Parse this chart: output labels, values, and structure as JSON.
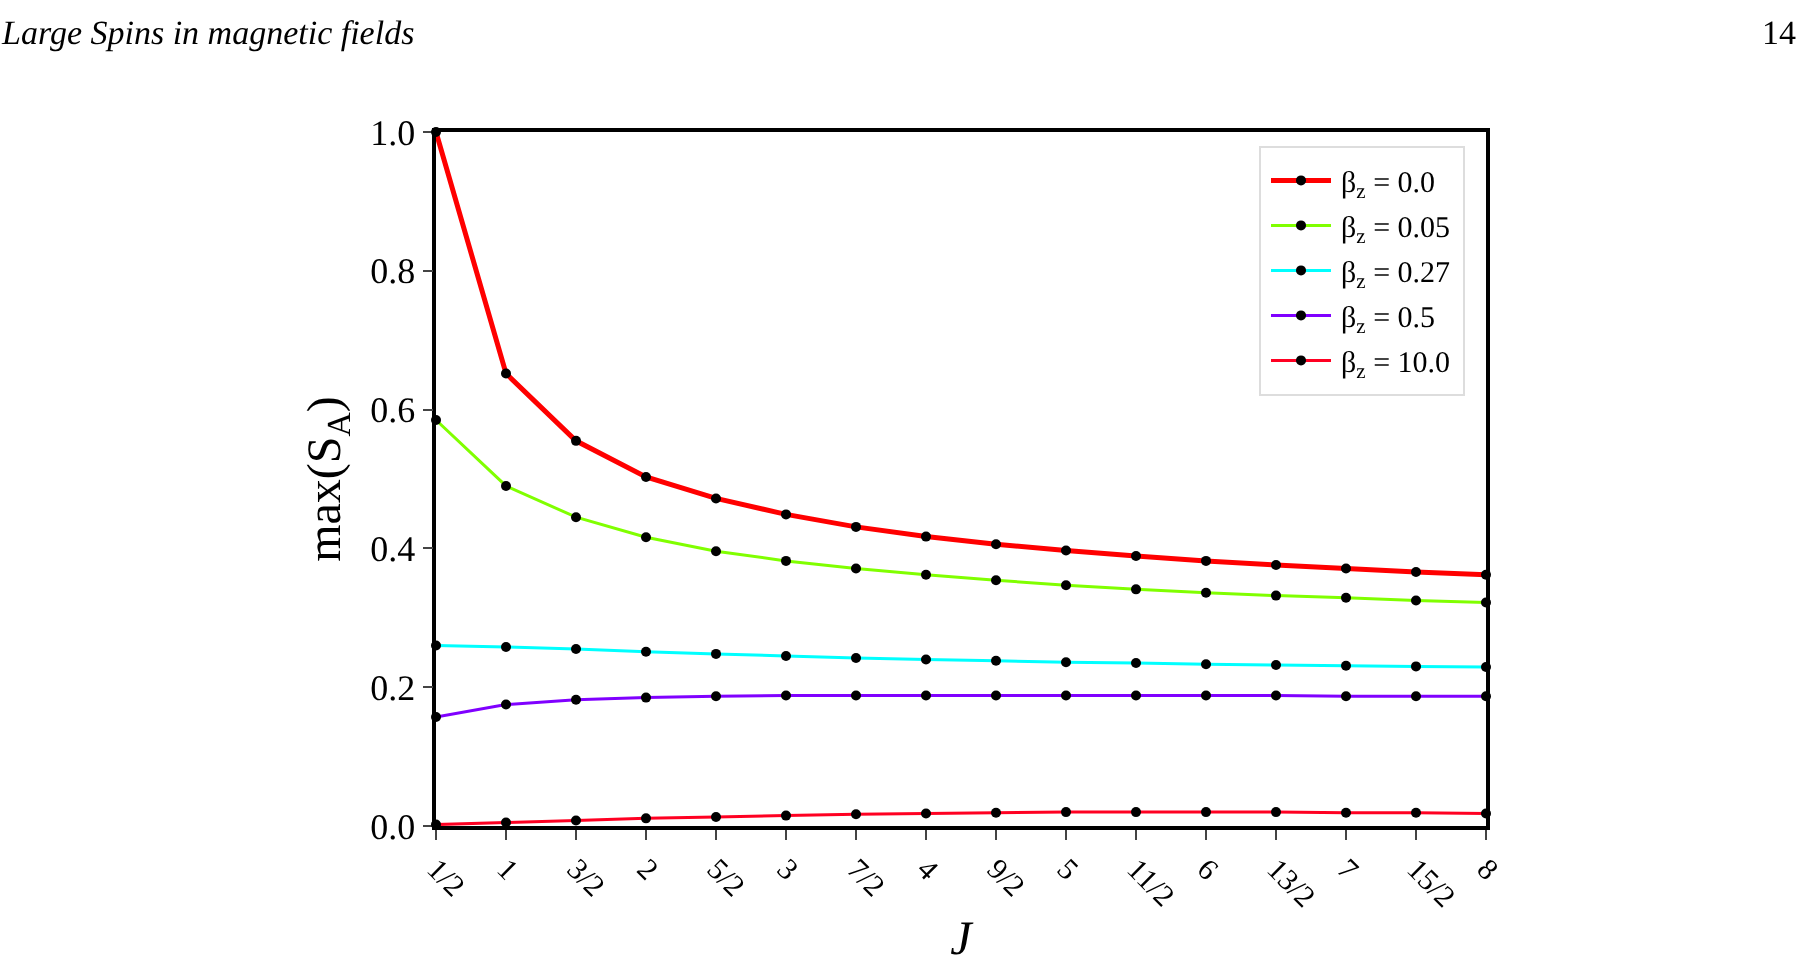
{
  "chart_data": {
    "type": "line",
    "xlabel": "J",
    "ylabel": "max(S$_{A}$)",
    "annotations": [
      "Large Spins in magnetic fields",
      "14"
    ],
    "categories": [
      "1/2",
      "1",
      "3/2",
      "2",
      "5/2",
      "3",
      "7/2",
      "4",
      "9/2",
      "5",
      "11/2",
      "6",
      "13/2",
      "7",
      "15/2",
      "8"
    ],
    "series": [
      {
        "name": "β$_{z}$ = 0.0",
        "color": "#ff0000",
        "values": [
          1.0,
          0.652,
          0.555,
          0.503,
          0.472,
          0.449,
          0.431,
          0.417,
          0.406,
          0.397,
          0.389,
          0.382,
          0.376,
          0.371,
          0.366,
          0.362
        ]
      },
      {
        "name": "β$_{z}$ = 0.05",
        "color": "#80ff00",
        "values": [
          0.585,
          0.49,
          0.445,
          0.416,
          0.396,
          0.382,
          0.371,
          0.362,
          0.354,
          0.347,
          0.341,
          0.336,
          0.332,
          0.329,
          0.325,
          0.322
        ]
      },
      {
        "name": "β$_{z}$ = 0.27",
        "color": "#00ffff",
        "values": [
          0.26,
          0.258,
          0.255,
          0.251,
          0.248,
          0.245,
          0.242,
          0.24,
          0.238,
          0.236,
          0.235,
          0.233,
          0.232,
          0.231,
          0.23,
          0.229
        ]
      },
      {
        "name": "β$_{z}$ = 0.5",
        "color": "#8000ff",
        "values": [
          0.157,
          0.175,
          0.182,
          0.185,
          0.187,
          0.188,
          0.188,
          0.188,
          0.188,
          0.188,
          0.188,
          0.188,
          0.188,
          0.187,
          0.187,
          0.187
        ]
      },
      {
        "name": "β$_{z}$ = 10.0",
        "color": "#ff0022",
        "values": [
          0.002,
          0.005,
          0.008,
          0.011,
          0.013,
          0.015,
          0.017,
          0.018,
          0.019,
          0.02,
          0.02,
          0.02,
          0.02,
          0.019,
          0.019,
          0.018
        ]
      }
    ],
    "ylim": [
      0,
      1.0
    ],
    "yticks": [
      {
        "value": 0,
        "label": "0.0"
      },
      {
        "value": 0.2,
        "label": "0.2"
      },
      {
        "value": 0.4,
        "label": "0.4"
      },
      {
        "value": 0.6,
        "label": "0.6"
      },
      {
        "value": 0.8,
        "label": "0.8"
      },
      {
        "value": 1.0,
        "label": "1.0"
      }
    ],
    "grid": false,
    "legend": "top right",
    "marker": "circle",
    "line_style": "solid"
  }
}
